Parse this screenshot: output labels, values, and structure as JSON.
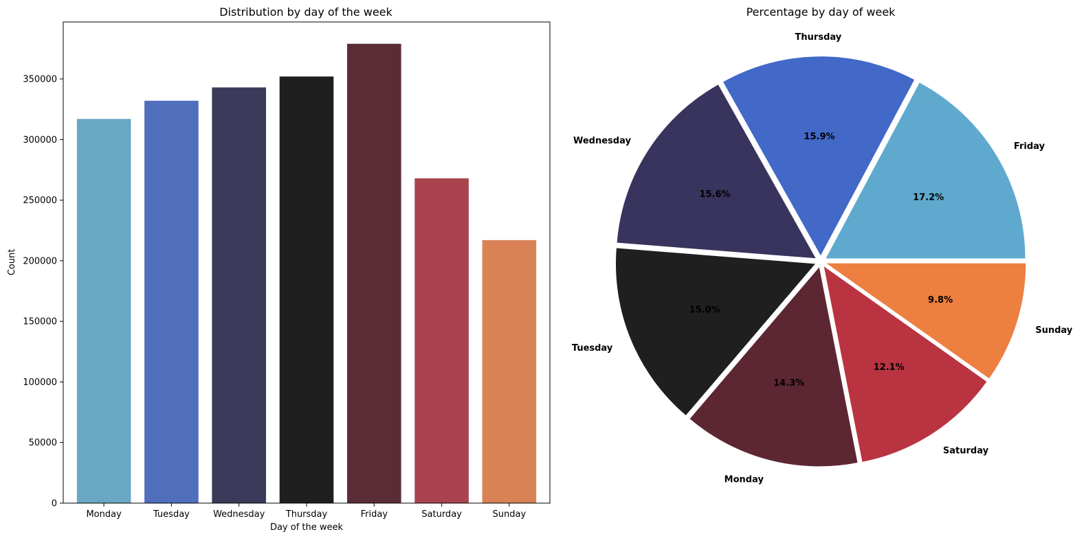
{
  "chart_data": [
    {
      "type": "bar",
      "title": "Distribution by day of the week",
      "xlabel": "Day of the week",
      "ylabel": "Count",
      "categories": [
        "Monday",
        "Tuesday",
        "Wednesday",
        "Thursday",
        "Friday",
        "Saturday",
        "Sunday"
      ],
      "values": [
        317000,
        332000,
        343000,
        352000,
        379000,
        268000,
        217000
      ],
      "colors": [
        "#6aa7c4",
        "#506ebb",
        "#3c3a5b",
        "#1f1f1f",
        "#5a2d36",
        "#a9444e",
        "#d88256"
      ],
      "ylim": [
        0,
        397000
      ],
      "yticks": [
        0,
        50000,
        100000,
        150000,
        200000,
        250000,
        300000,
        350000
      ],
      "ytick_labels": [
        "0",
        "50000",
        "100000",
        "150000",
        "200000",
        "250000",
        "300000",
        "350000"
      ],
      "grid": false
    },
    {
      "type": "pie",
      "title": "Percentage by day of week",
      "labels": [
        "Friday",
        "Thursday",
        "Wednesday",
        "Tuesday",
        "Monday",
        "Saturday",
        "Sunday"
      ],
      "values": [
        17.2,
        15.9,
        15.6,
        15.0,
        14.3,
        12.1,
        9.8
      ],
      "value_labels": [
        "17.2%",
        "15.9%",
        "15.6%",
        "15.0%",
        "14.3%",
        "12.1%",
        "9.8%"
      ],
      "colors": [
        "#60a9ce",
        "#4268c8",
        "#38345d",
        "#1f1f1f",
        "#5c2733",
        "#b93440",
        "#ed7f40"
      ],
      "start_angle": 0,
      "direction": "counterclockwise",
      "exploded": true
    }
  ]
}
